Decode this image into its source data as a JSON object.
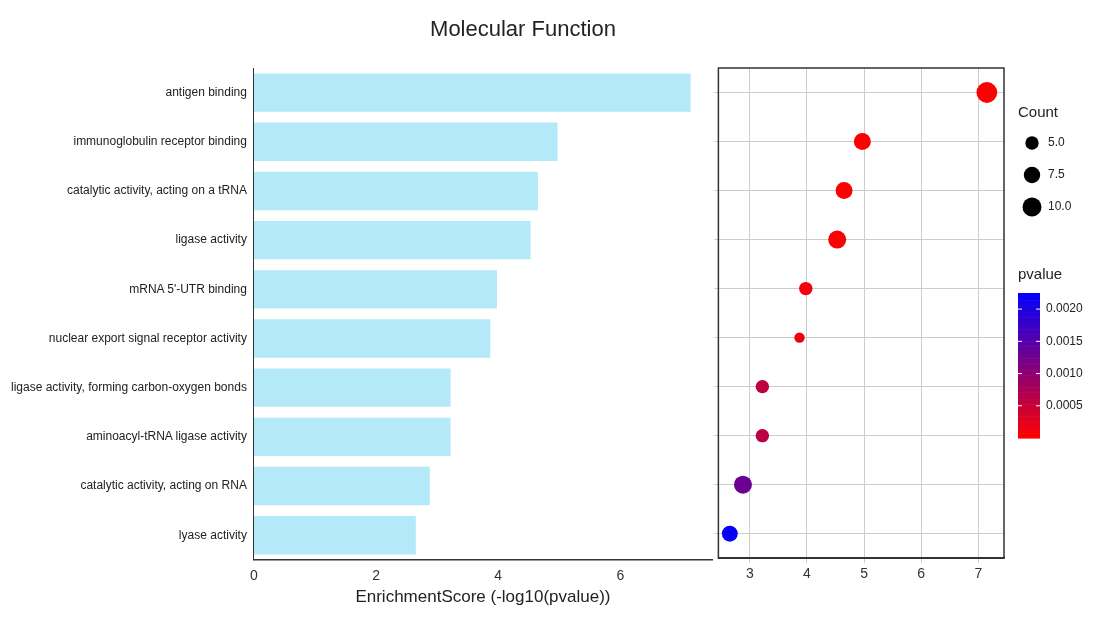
{
  "chart_data": [
    {
      "type": "bar",
      "title": "Molecular Function",
      "orientation": "horizontal",
      "xlabel": "EnrichmentScore (-log10(pvalue))",
      "color": "#b3e9f9",
      "grid": false,
      "xlim": [
        0,
        7.5
      ],
      "xticks": [
        0,
        2,
        4,
        6
      ],
      "categories": [
        "antigen binding",
        "immunoglobulin receptor binding",
        "catalytic activity, acting on a tRNA",
        "ligase activity",
        "mRNA 5'-UTR binding",
        "nuclear export signal receptor activity",
        "ligase activity, forming carbon-oxygen bonds",
        "aminoacyl-tRNA ligase activity",
        "catalytic activity, acting on RNA",
        "lyase activity"
      ],
      "values": [
        7.15,
        4.97,
        4.65,
        4.53,
        3.98,
        3.87,
        3.22,
        3.22,
        2.88,
        2.65
      ]
    },
    {
      "type": "bubble",
      "orientation": "horizontal",
      "grid": true,
      "tick_labels": "x",
      "xlim": [
        2.45,
        7.45
      ],
      "xticks": [
        3,
        4,
        5,
        6,
        7
      ],
      "legend_title": "Count",
      "clabel": "pvalue",
      "categories": [
        null,
        null,
        null,
        null,
        null,
        null,
        null,
        null,
        null,
        null
      ],
      "values": [
        7.15,
        4.97,
        4.65,
        4.53,
        3.98,
        3.87,
        3.22,
        3.22,
        2.88,
        2.65
      ],
      "sizes": [
        12,
        8,
        8,
        9,
        5,
        3,
        5,
        5,
        9,
        7
      ],
      "size_legend": [
        {
          "value": 5,
          "label": "5.0"
        },
        7.5,
        {
          "value": 10,
          "label": "10.0"
        }
      ],
      "cvalues": [
        7e-08,
        1.1e-05,
        2.2e-05,
        3e-05,
        0.0001,
        0.00013,
        0.0006,
        0.0006,
        0.0013,
        0.0022
      ],
      "clim": [
        0,
        0.00225
      ],
      "cticks": [
        0.0005,
        {
          "value": 0.001,
          "label": "0.0010"
        },
        0.0015,
        {
          "value": 0.002,
          "label": "0.0020"
        }
      ]
    }
  ]
}
